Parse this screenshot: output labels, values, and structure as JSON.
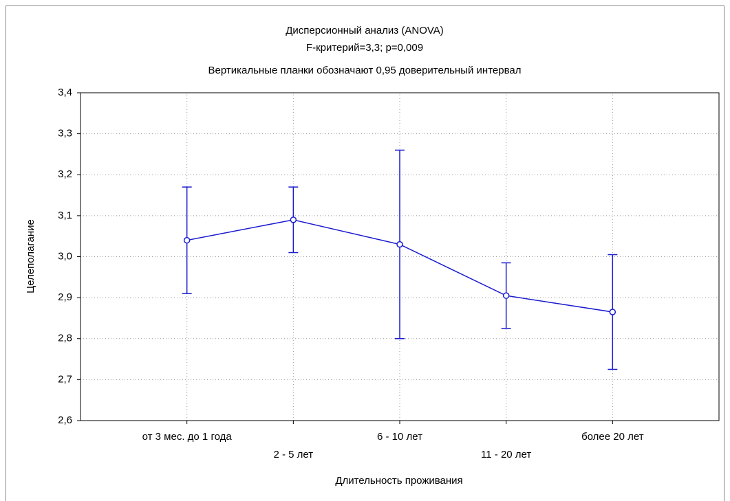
{
  "chart_data": {
    "type": "line",
    "title": "Дисперсионный анализ (ANOVA)",
    "subtitle": "F-критерий=3,3; p=0,009",
    "annotation": "Вертикальные планки обозначают 0,95 доверительный интервал",
    "x_label": "Длительность проживания",
    "y_label": "Целеполагание",
    "categories": [
      "от 3 мес. до 1 года",
      "2 - 5 лет",
      "6 - 10 лет",
      "11 - 20 лет",
      "более 20 лет"
    ],
    "values": [
      3.04,
      3.09,
      3.03,
      2.905,
      2.865
    ],
    "errors": [
      0.13,
      0.08,
      0.23,
      0.08,
      0.14
    ],
    "color": "#1c1cd0",
    "ylim": [
      2.6,
      3.4
    ],
    "yticks": [
      {
        "value": 2.6,
        "label": "2,6"
      },
      {
        "value": 2.7,
        "label": "2,7"
      },
      {
        "value": 2.8,
        "label": "2,8"
      },
      {
        "value": 2.9,
        "label": "2,9"
      },
      {
        "value": 3.0,
        "label": "3,0"
      },
      {
        "value": 3.1,
        "label": "3,1"
      },
      {
        "value": 3.2,
        "label": "3,2"
      },
      {
        "value": 3.3,
        "label": "3,3"
      },
      {
        "value": 3.4,
        "label": "3,4"
      }
    ],
    "grid": true
  }
}
